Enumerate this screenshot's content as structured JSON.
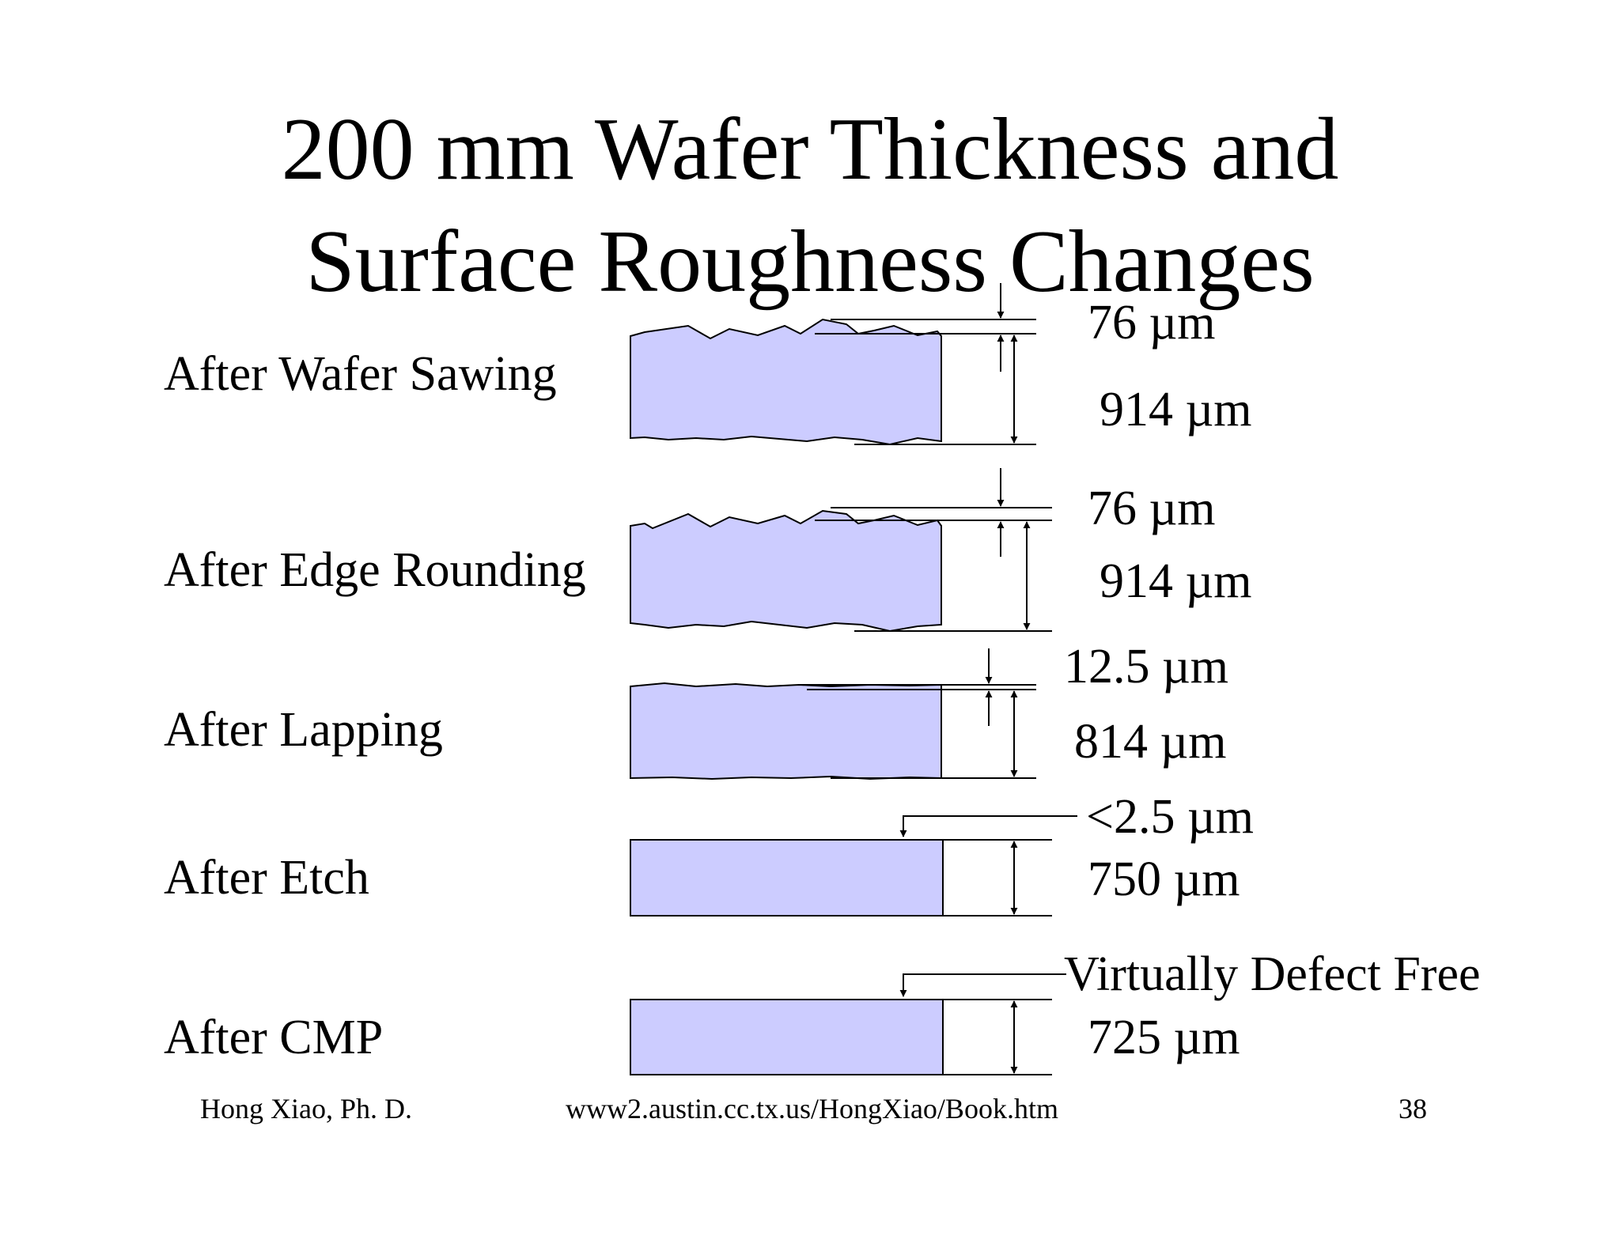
{
  "title": {
    "line1": "200 mm Wafer Thickness and",
    "line2": "Surface Roughness Changes"
  },
  "stages": [
    {
      "label": "After Wafer Sawing",
      "roughness": "76 µm",
      "thickness": "914 µm"
    },
    {
      "label": "After Edge Rounding",
      "roughness": "76 µm",
      "thickness": "914 µm"
    },
    {
      "label": "After Lapping",
      "roughness": "12.5 µm",
      "thickness": "814 µm"
    },
    {
      "label": "After Etch",
      "roughness": "<2.5 µm",
      "thickness": "750 µm"
    },
    {
      "label": "After CMP",
      "roughness": "Virtually Defect Free",
      "thickness": "725 µm"
    }
  ],
  "footer": {
    "author": "Hong Xiao, Ph. D.",
    "url": "www2.austin.cc.tx.us/HongXiao/Book.htm",
    "page": "38"
  },
  "colors": {
    "wafer_fill": "#ccccff",
    "outline": "#000000"
  }
}
